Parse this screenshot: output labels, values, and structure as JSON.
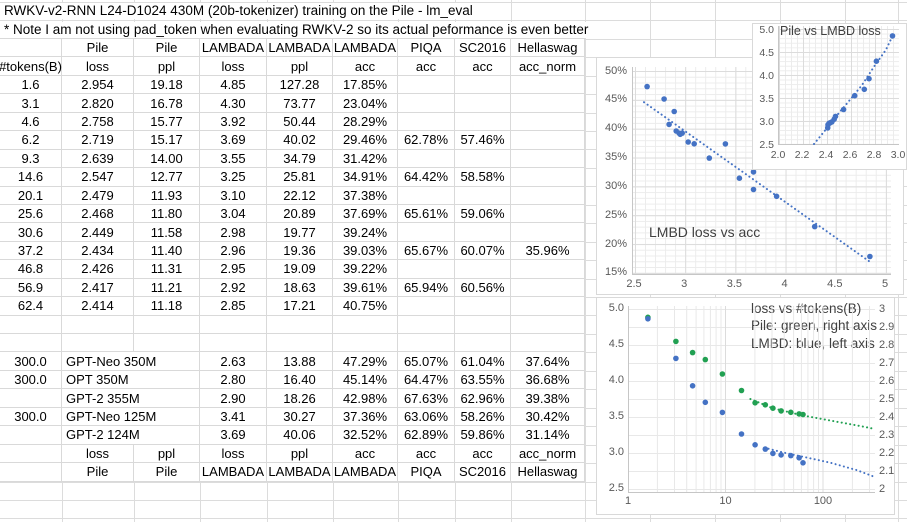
{
  "title": "RWKV-v2-RNN L24-D1024 430M (20b-tokenizer) training on the Pile - lm_eval",
  "note": "* Note I am not using pad_token when evaluating RWKV-2 so its actual peformance is even better",
  "colors": {
    "note_blue": "#1b74d8",
    "series_blue": "#4472c4",
    "series_green": "#21a052",
    "gridline": "#dcdcdc"
  },
  "table": {
    "header_row1": [
      "",
      "Pile",
      "Pile",
      "LAMBADA",
      "LAMBADA",
      "LAMBADA",
      "PIQA",
      "SC2016",
      "Hellaswag"
    ],
    "header_row2": [
      "#tokens(B)",
      "loss",
      "ppl",
      "loss",
      "ppl",
      "acc",
      "acc",
      "acc",
      "acc_norm"
    ],
    "rwkv_rows": [
      [
        "1.6",
        "2.954",
        "19.18",
        "4.85",
        "127.28",
        "17.85%",
        "",
        "",
        ""
      ],
      [
        "3.1",
        "2.820",
        "16.78",
        "4.30",
        "73.77",
        "23.04%",
        "",
        "",
        ""
      ],
      [
        "4.6",
        "2.758",
        "15.77",
        "3.92",
        "50.44",
        "28.29%",
        "",
        "",
        ""
      ],
      [
        "6.2",
        "2.719",
        "15.17",
        "3.69",
        "40.02",
        "29.46%",
        "62.78%",
        "57.46%",
        ""
      ],
      [
        "9.3",
        "2.639",
        "14.00",
        "3.55",
        "34.79",
        "31.42%",
        "",
        "",
        ""
      ],
      [
        "14.6",
        "2.547",
        "12.77",
        "3.25",
        "25.81",
        "34.91%",
        "64.42%",
        "58.58%",
        ""
      ],
      [
        "20.1",
        "2.479",
        "11.93",
        "3.10",
        "22.12",
        "37.38%",
        "",
        "",
        ""
      ],
      [
        "25.6",
        "2.468",
        "11.80",
        "3.04",
        "20.89",
        "37.69%",
        "65.61%",
        "59.06%",
        ""
      ],
      [
        "30.6",
        "2.449",
        "11.58",
        "2.98",
        "19.77",
        "39.24%",
        "",
        "",
        ""
      ],
      [
        "37.2",
        "2.434",
        "11.40",
        "2.96",
        "19.36",
        "39.03%",
        "65.67%",
        "60.07%",
        "35.96%"
      ],
      [
        "46.8",
        "2.426",
        "11.31",
        "2.95",
        "19.09",
        "39.22%",
        "",
        "",
        ""
      ],
      [
        "56.9",
        "2.417",
        "11.21",
        "2.92",
        "18.63",
        "39.61%",
        "65.94%",
        "60.56%",
        ""
      ],
      [
        "62.4",
        "2.414",
        "11.18",
        "2.85",
        "17.21",
        "40.75%",
        "",
        "",
        ""
      ]
    ],
    "blank_rows": 2,
    "baseline_rows": [
      {
        "tokens": "300.0",
        "model": "GPT-Neo 350M",
        "cells": [
          "2.63",
          "13.88",
          "47.29%",
          "65.07%",
          "61.04%",
          "37.64%"
        ]
      },
      {
        "tokens": "300.0",
        "model": "OPT 350M",
        "cells": [
          "2.80",
          "16.40",
          "45.14%",
          "64.47%",
          "63.55%",
          "36.68%"
        ]
      },
      {
        "tokens": "",
        "model": "GPT-2 355M",
        "cells": [
          "2.90",
          "18.26",
          "42.98%",
          "67.63%",
          "62.96%",
          "39.38%"
        ]
      },
      {
        "tokens": "300.0",
        "model": "GPT-Neo 125M",
        "cells": [
          "3.41",
          "30.27",
          "37.36%",
          "63.06%",
          "58.26%",
          "30.42%"
        ]
      },
      {
        "tokens": "",
        "model": "GPT-2 124M",
        "cells": [
          "3.69",
          "40.06",
          "32.52%",
          "62.89%",
          "59.86%",
          "31.14%"
        ]
      }
    ],
    "footer_row1": [
      "",
      "loss",
      "ppl",
      "loss",
      "ppl",
      "acc",
      "acc",
      "acc",
      "acc_norm"
    ],
    "footer_row2": [
      "",
      "Pile",
      "Pile",
      "LAMBADA",
      "LAMBADA",
      "LAMBADA",
      "PIQA",
      "SC2016",
      "Hellaswag"
    ]
  },
  "chart_data": [
    {
      "id": "lmbd-loss-vs-acc",
      "type": "scatter",
      "title": "LMBD loss vs acc",
      "xlabel": "LAMBADA loss",
      "ylabel": "LAMBADA acc",
      "xlim": [
        2.5,
        5
      ],
      "ylim": [
        15,
        50
      ],
      "x_ticks": [
        "2.5",
        "3",
        "3.5",
        "4",
        "4.5",
        "5"
      ],
      "y_ticks": [
        "50%",
        "45%",
        "40%",
        "35%",
        "30%",
        "25%",
        "20%",
        "15%"
      ],
      "grid": "minor+major",
      "legend": "none",
      "point_color": "#4472c4",
      "points": [
        [
          4.85,
          17.85
        ],
        [
          4.3,
          23.04
        ],
        [
          3.92,
          28.29
        ],
        [
          3.69,
          29.46
        ],
        [
          3.55,
          31.42
        ],
        [
          3.25,
          34.91
        ],
        [
          3.1,
          37.38
        ],
        [
          3.04,
          37.69
        ],
        [
          2.98,
          39.24
        ],
        [
          2.96,
          39.03
        ],
        [
          2.95,
          39.22
        ],
        [
          2.92,
          39.61
        ],
        [
          2.85,
          40.75
        ],
        [
          2.63,
          47.29
        ],
        [
          2.8,
          45.14
        ],
        [
          2.9,
          42.98
        ],
        [
          3.41,
          37.36
        ],
        [
          3.69,
          32.52
        ]
      ],
      "trend": [
        [
          2.6,
          44.6
        ],
        [
          4.87,
          16.7
        ]
      ]
    },
    {
      "id": "pile-vs-lmbd-loss",
      "type": "scatter",
      "title": "Pile vs LMBD loss",
      "xlabel": "Pile loss",
      "ylabel": "LAMBADA loss",
      "xlim": [
        2.0,
        3.0
      ],
      "ylim": [
        2.5,
        5.0
      ],
      "x_ticks": [
        "2.0",
        "2.2",
        "2.4",
        "2.6",
        "2.8",
        "3.0"
      ],
      "y_ticks": [
        "5.0",
        "4.5",
        "4.0",
        "3.5",
        "3.0",
        "2.5"
      ],
      "grid": "minor+major",
      "legend": "none",
      "point_color": "#4472c4",
      "points": [
        [
          2.954,
          4.85
        ],
        [
          2.82,
          4.3
        ],
        [
          2.758,
          3.92
        ],
        [
          2.719,
          3.69
        ],
        [
          2.639,
          3.55
        ],
        [
          2.547,
          3.25
        ],
        [
          2.479,
          3.1
        ],
        [
          2.468,
          3.04
        ],
        [
          2.449,
          2.98
        ],
        [
          2.434,
          2.96
        ],
        [
          2.426,
          2.95
        ],
        [
          2.417,
          2.92
        ],
        [
          2.414,
          2.85
        ]
      ],
      "trend": [
        [
          2.3,
          2.5
        ],
        [
          2.4,
          2.82
        ],
        [
          2.5,
          3.15
        ],
        [
          2.6,
          3.46
        ],
        [
          2.7,
          3.78
        ],
        [
          2.8,
          4.18
        ],
        [
          2.9,
          4.55
        ],
        [
          2.96,
          4.88
        ]
      ]
    },
    {
      "id": "loss-vs-tokens",
      "type": "scatter",
      "title_lines": [
        "loss vs #tokens(B)",
        "Pile: green, right axis",
        "LMBD: blue, left axis"
      ],
      "x_log": true,
      "xlim": [
        1,
        334
      ],
      "x_ticks": [
        "1",
        "10",
        "100"
      ],
      "left_axis": {
        "label": "LAMBADA loss",
        "lim": [
          2.5,
          5.0
        ],
        "ticks": [
          "5.0",
          "4.5",
          "4.0",
          "3.5",
          "3.0",
          "2.5"
        ]
      },
      "right_axis": {
        "label": "Pile loss",
        "lim": [
          2,
          3
        ],
        "ticks": [
          "3",
          "2.9",
          "2.8",
          "2.7",
          "2.6",
          "2.5",
          "2.4",
          "2.3",
          "2.2",
          "2.1",
          "2"
        ]
      },
      "series": [
        {
          "name": "Pile loss",
          "axis": "right",
          "color": "#21a052",
          "points": [
            [
              1.6,
              2.954
            ],
            [
              3.1,
              2.82
            ],
            [
              4.6,
              2.758
            ],
            [
              6.2,
              2.719
            ],
            [
              9.3,
              2.639
            ],
            [
              14.6,
              2.547
            ],
            [
              20.1,
              2.479
            ],
            [
              25.6,
              2.468
            ],
            [
              30.6,
              2.449
            ],
            [
              37.2,
              2.434
            ],
            [
              46.8,
              2.426
            ],
            [
              56.9,
              2.417
            ],
            [
              62.4,
              2.414
            ]
          ],
          "trend": [
            [
              18,
              2.5
            ],
            [
              30,
              2.45
            ],
            [
              60,
              2.41
            ],
            [
              120,
              2.38
            ],
            [
              240,
              2.35
            ],
            [
              330,
              2.335
            ]
          ]
        },
        {
          "name": "LMBD loss",
          "axis": "left",
          "color": "#4472c4",
          "points": [
            [
              1.6,
              4.85
            ],
            [
              3.1,
              4.3
            ],
            [
              4.6,
              3.92
            ],
            [
              6.2,
              3.69
            ],
            [
              9.3,
              3.55
            ],
            [
              14.6,
              3.25
            ],
            [
              20.1,
              3.1
            ],
            [
              25.6,
              3.04
            ],
            [
              30.6,
              2.98
            ],
            [
              37.2,
              2.96
            ],
            [
              46.8,
              2.95
            ],
            [
              56.9,
              2.92
            ],
            [
              62.4,
              2.85
            ]
          ],
          "trend": [
            [
              25,
              3.06
            ],
            [
              40,
              2.99
            ],
            [
              70,
              2.92
            ],
            [
              120,
              2.85
            ],
            [
              220,
              2.75
            ],
            [
              330,
              2.66
            ]
          ]
        }
      ]
    }
  ]
}
